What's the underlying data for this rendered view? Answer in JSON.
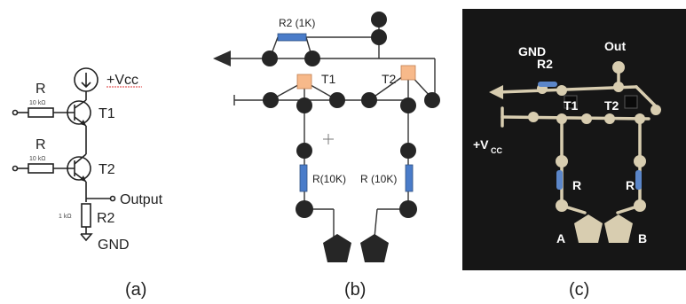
{
  "panel_a": {
    "caption": "(a)",
    "vcc_label": "+Vcc",
    "r_top_label": "R",
    "r_top_value": "10 kΩ",
    "t1_label": "T1",
    "r_bottom_label": "R",
    "r_bottom_value": "10 kΩ",
    "t2_label": "T2",
    "output_label": "Output",
    "r2_value": "1 kΩ",
    "r2_label": "R2",
    "gnd_label": "GND"
  },
  "panel_b": {
    "caption": "(b)",
    "r2_label": "R2 (1K)",
    "t1_label": "T1",
    "t2_label": "T2",
    "r_left_label": "R(10K)",
    "r_right_label": "R (10K)",
    "accent_resistor": "#4a7cc9",
    "accent_transistor": "#f7b98a",
    "node_color": "#262626"
  },
  "panel_c": {
    "caption": "(c)",
    "gnd_label": "GND",
    "r2_label": "R2",
    "out_label": "Out",
    "t1_label": "T1",
    "t2_label": "T2",
    "vcc_label": "+V",
    "vcc_sub": "CC",
    "r_left_label": "R",
    "r_right_label": "R",
    "a_label": "A",
    "b_label": "B",
    "background": "#161616",
    "thread": "#d8cdb0"
  }
}
